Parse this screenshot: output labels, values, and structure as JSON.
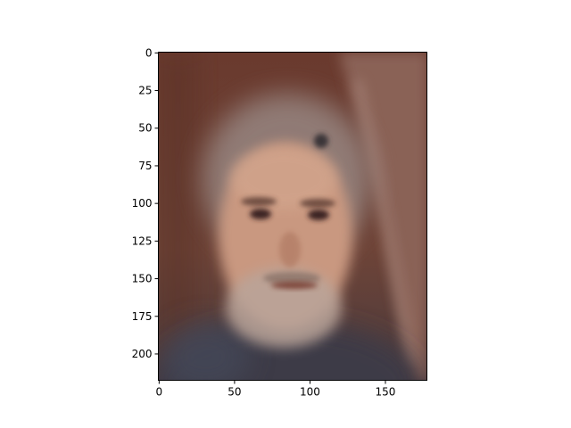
{
  "figure": {
    "background_color": "#ffffff",
    "axes_color": "#000000"
  },
  "image_plot": {
    "image_description": "blurred average face of a bearded man with gray hair against a brown curtain background",
    "image_size": {
      "width": 178,
      "height": 218
    },
    "xlim": [
      -0.5,
      177.5
    ],
    "ylim": [
      217.5,
      -0.5
    ],
    "x_ticks": [
      0,
      50,
      100,
      150
    ],
    "x_tick_labels": [
      "0",
      "50",
      "100",
      "150"
    ],
    "y_ticks": [
      0,
      25,
      50,
      75,
      100,
      125,
      150,
      175,
      200
    ],
    "y_tick_labels": [
      "0",
      "25",
      "50",
      "75",
      "100",
      "125",
      "150",
      "175",
      "200"
    ],
    "colors": {
      "background": "#6a3e32",
      "curtain_right": "#8a6256",
      "curtain_fold": "#a9877b",
      "skin": "#c99880",
      "hair": "#9a8a86",
      "beard": "#b9a49a",
      "shirt": "#3c3a46",
      "eye": "#3a2420",
      "lips": "#7a4034"
    }
  }
}
